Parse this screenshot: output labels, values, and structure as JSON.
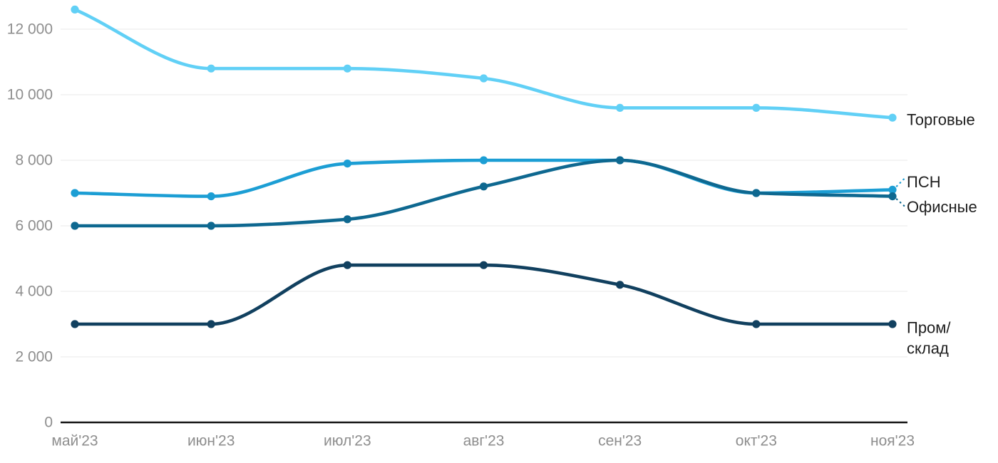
{
  "chart_data": {
    "type": "line",
    "title": "",
    "xlabel": "",
    "ylabel": "",
    "grid": "horizontal",
    "legend_position": "right-edge-labels",
    "categories": [
      "май'23",
      "июн'23",
      "июл'23",
      "авг'23",
      "сен'23",
      "окт'23",
      "ноя'23"
    ],
    "y_ticks": [
      {
        "value": 0,
        "label": "0"
      },
      {
        "value": 2000,
        "label": "2 000"
      },
      {
        "value": 4000,
        "label": "4 000"
      },
      {
        "value": 6000,
        "label": "6 000"
      },
      {
        "value": 8000,
        "label": "8 000"
      },
      {
        "value": 10000,
        "label": "10 000"
      },
      {
        "value": 12000,
        "label": "12 000"
      }
    ],
    "ylim": [
      0,
      12800
    ],
    "series": [
      {
        "name": "Торговые",
        "color": "#61d0f6",
        "values": [
          12600,
          10800,
          10800,
          10500,
          9600,
          9600,
          9300
        ],
        "label_lines": [
          "Торговые"
        ],
        "has_leader": false
      },
      {
        "name": "ПСН",
        "color": "#1c9ed4",
        "values": [
          7000,
          6900,
          7900,
          8000,
          8000,
          7000,
          7100
        ],
        "label_lines": [
          "ПСН"
        ],
        "has_leader": true
      },
      {
        "name": "Офисные",
        "color": "#0e6890",
        "values": [
          6000,
          6000,
          6200,
          7200,
          8000,
          7000,
          6900
        ],
        "label_lines": [
          "Офисные"
        ],
        "has_leader": true
      },
      {
        "name": "Пром/склад",
        "color": "#11405f",
        "values": [
          3000,
          3000,
          4800,
          4800,
          4200,
          3000,
          3000
        ],
        "label_lines": [
          "Пром/",
          "склад"
        ],
        "has_leader": false
      }
    ],
    "colors": {
      "background": "#ffffff",
      "gridline": "#e8e8e8",
      "axis": "#151515",
      "tick_text": "#8e8e8e",
      "label_text": "#1e1e1e"
    }
  }
}
